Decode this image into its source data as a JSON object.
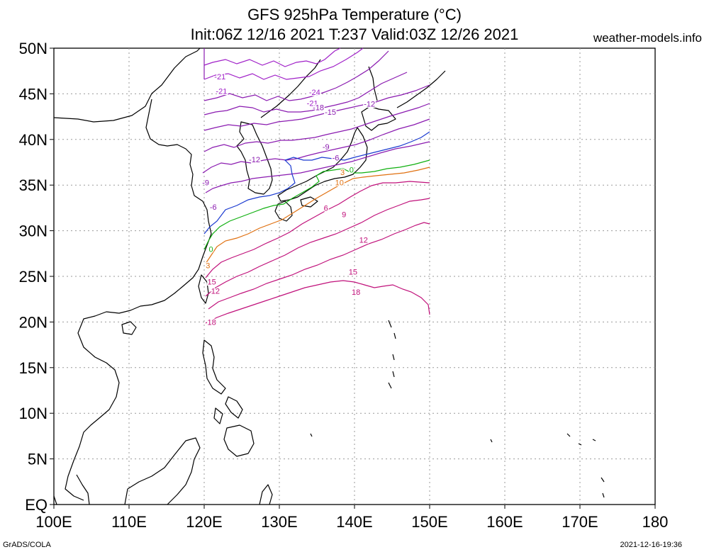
{
  "header": {
    "title": "GFS 925hPa Temperature (°C)",
    "subtitle": "Init:06Z 12/16 2021 T:237 Valid:03Z 12/26 2021",
    "site": "weather-models.info"
  },
  "footer": {
    "left": "GrADS/COLA",
    "right": "2021-12-16-19:36"
  },
  "map": {
    "lon_ticks": [
      {
        "lon": 100,
        "label": "100E"
      },
      {
        "lon": 110,
        "label": "110E"
      },
      {
        "lon": 120,
        "label": "120E"
      },
      {
        "lon": 130,
        "label": "130E"
      },
      {
        "lon": 140,
        "label": "140E"
      },
      {
        "lon": 150,
        "label": "150E"
      },
      {
        "lon": 160,
        "label": "160E"
      },
      {
        "lon": 170,
        "label": "170E"
      },
      {
        "lon": 180,
        "label": "180"
      }
    ],
    "lat_ticks": [
      {
        "lat": 0,
        "label": "EQ"
      },
      {
        "lat": 5,
        "label": "5N"
      },
      {
        "lat": 10,
        "label": "10N"
      },
      {
        "lat": 15,
        "label": "15N"
      },
      {
        "lat": 20,
        "label": "20N"
      },
      {
        "lat": 25,
        "label": "25N"
      },
      {
        "lat": 30,
        "label": "30N"
      },
      {
        "lat": 35,
        "label": "35N"
      },
      {
        "lat": 40,
        "label": "40N"
      },
      {
        "lat": 45,
        "label": "45N"
      },
      {
        "lat": 50,
        "label": "50N"
      }
    ],
    "lon_range": [
      100,
      180
    ],
    "lat_range": [
      0,
      50
    ],
    "colors": {
      "cold": "#8a1ab0",
      "very_cold": "#a020c8",
      "zero": "#1a3ad0",
      "three": "#10b010",
      "six": "#e07010",
      "warm": "#c0107a",
      "coast": "#000000"
    },
    "contour_labels": [
      {
        "text": "-21",
        "lon": 122.1,
        "lat": 46.9,
        "color": "very_cold"
      },
      {
        "text": "-21",
        "lon": 122.3,
        "lat": 45.3,
        "color": "very_cold"
      },
      {
        "text": "-24",
        "lon": 134.7,
        "lat": 45.2,
        "color": "very_cold"
      },
      {
        "text": "-21",
        "lon": 134.4,
        "lat": 44.0,
        "color": "very_cold"
      },
      {
        "text": "-18",
        "lon": 135.2,
        "lat": 43.5,
        "color": "cold"
      },
      {
        "text": "-15",
        "lon": 136.8,
        "lat": 43.0,
        "color": "cold"
      },
      {
        "text": "-12",
        "lon": 142.0,
        "lat": 43.9,
        "color": "cold"
      },
      {
        "text": "-9",
        "lon": 136.2,
        "lat": 39.2,
        "color": "cold"
      },
      {
        "text": "-6",
        "lon": 137.5,
        "lat": 38.0,
        "color": "cold"
      },
      {
        "text": "-12",
        "lon": 126.7,
        "lat": 37.8,
        "color": "cold"
      },
      {
        "text": "-9",
        "lon": 120.2,
        "lat": 35.3,
        "color": "cold"
      },
      {
        "text": "-6",
        "lon": 121.2,
        "lat": 32.6,
        "color": "cold"
      },
      {
        "text": "3",
        "lon": 138.4,
        "lat": 36.4,
        "color": "six"
      },
      {
        "text": "0",
        "lon": 139.6,
        "lat": 36.7,
        "color": "three"
      },
      {
        "text": "10",
        "lon": 138.0,
        "lat": 35.3,
        "color": "six"
      },
      {
        "text": "6",
        "lon": 136.2,
        "lat": 32.5,
        "color": "warm"
      },
      {
        "text": "9",
        "lon": 138.6,
        "lat": 31.8,
        "color": "warm"
      },
      {
        "text": "12",
        "lon": 141.2,
        "lat": 29.0,
        "color": "warm"
      },
      {
        "text": "15",
        "lon": 139.8,
        "lat": 25.5,
        "color": "warm"
      },
      {
        "text": "18",
        "lon": 140.2,
        "lat": 23.3,
        "color": "warm"
      },
      {
        "text": "0",
        "lon": 120.9,
        "lat": 28.0,
        "color": "three"
      },
      {
        "text": "3",
        "lon": 120.5,
        "lat": 26.2,
        "color": "six"
      },
      {
        "text": "15",
        "lon": 121.0,
        "lat": 24.4,
        "color": "warm"
      },
      {
        "text": "12",
        "lon": 121.5,
        "lat": 23.4,
        "color": "warm"
      },
      {
        "text": "18",
        "lon": 121.0,
        "lat": 20.0,
        "color": "warm"
      }
    ]
  }
}
